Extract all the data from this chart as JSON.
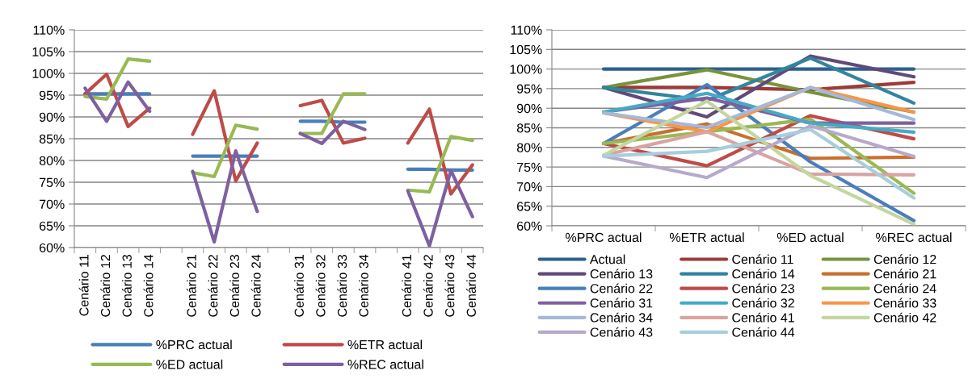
{
  "chart_data": [
    {
      "type": "line",
      "categories": [
        "Cenário 11",
        "Cenário 12",
        "Cenário 13",
        "Cenário 14",
        null,
        "Cenário 21",
        "Cenário 22",
        "Cenário 23",
        "Cenário 24",
        null,
        "Cenário 31",
        "Cenário 32",
        "Cenário 33",
        "Cenário 34",
        null,
        "Cenário 41",
        "Cenário 42",
        "Cenário 43",
        "Cenário 44"
      ],
      "ylim": [
        60,
        110
      ],
      "yticks": [
        {
          "value": 60,
          "label": "60%"
        },
        {
          "value": 65,
          "label": "65%"
        },
        {
          "value": 70,
          "label": "70%"
        },
        {
          "value": 75,
          "label": "75%"
        },
        {
          "value": 80,
          "label": "80%"
        },
        {
          "value": 85,
          "label": "85%"
        },
        {
          "value": 90,
          "label": "90%"
        },
        {
          "value": 95,
          "label": "95%"
        },
        {
          "value": 100,
          "label": "100%"
        },
        {
          "value": 105,
          "label": "105%"
        },
        {
          "value": 110,
          "label": "110%"
        }
      ],
      "grid": "y",
      "legend": "bottom",
      "marker": "none",
      "line_style": "solid",
      "series": [
        {
          "name": "%PRC actual",
          "color": "#4a7ebb",
          "values": [
            95.3,
            95.3,
            95.3,
            95.3,
            null,
            81,
            81,
            81,
            81,
            null,
            89,
            89,
            88.8,
            88.8,
            null,
            78,
            78,
            77.8,
            77.8
          ]
        },
        {
          "name": "%ETR actual",
          "color": "#be4b48",
          "values": [
            95.3,
            99.8,
            87.8,
            92,
            null,
            86,
            96,
            75.3,
            84,
            null,
            92.6,
            93.8,
            84,
            85.1,
            null,
            84,
            91.8,
            72.3,
            79
          ]
        },
        {
          "name": "%ED actual",
          "color": "#98b954",
          "values": [
            94.7,
            94.1,
            103.3,
            102.8,
            null,
            77.2,
            76.3,
            88.1,
            87.2,
            null,
            86.2,
            86.2,
            95.3,
            95.3,
            null,
            73.2,
            72.8,
            85.5,
            84.6
          ]
        },
        {
          "name": "%REC actual",
          "color": "#7d60a0",
          "values": [
            96.6,
            89,
            98,
            91.3,
            null,
            77.5,
            61.3,
            82.2,
            68.3,
            null,
            86.2,
            83.9,
            89,
            87.1,
            null,
            73,
            60.4,
            77.7,
            67.1
          ]
        }
      ]
    },
    {
      "type": "line",
      "categories": [
        "%PRC actual",
        "%ETR actual",
        "%ED actual",
        "%REC actual"
      ],
      "ylim": [
        60,
        110
      ],
      "yticks": [
        {
          "value": 60,
          "label": "60%"
        },
        {
          "value": 65,
          "label": "65%"
        },
        {
          "value": 70,
          "label": "70%"
        },
        {
          "value": 75,
          "label": "75%"
        },
        {
          "value": 80,
          "label": "80%"
        },
        {
          "value": 85,
          "label": "85%"
        },
        {
          "value": 90,
          "label": "90%"
        },
        {
          "value": 95,
          "label": "95%"
        },
        {
          "value": 100,
          "label": "100%"
        },
        {
          "value": 105,
          "label": "105%"
        },
        {
          "value": 110,
          "label": "110%"
        }
      ],
      "grid": "y",
      "legend": "bottom",
      "marker": "none",
      "line_style": "solid",
      "series": [
        {
          "name": "Actual",
          "color": "#2e5f8f",
          "values": [
            100,
            100,
            100,
            100
          ]
        },
        {
          "name": "Cenário 11",
          "color": "#9b3b38",
          "values": [
            95.3,
            95.3,
            94.7,
            96.6
          ]
        },
        {
          "name": "Cenário 12",
          "color": "#77933c",
          "values": [
            95.3,
            99.8,
            94.1,
            89
          ]
        },
        {
          "name": "Cenário 13",
          "color": "#604a7b",
          "values": [
            95.3,
            87.8,
            103.3,
            98
          ]
        },
        {
          "name": "Cenário 14",
          "color": "#31859c",
          "values": [
            95.3,
            92,
            102.8,
            91.3
          ]
        },
        {
          "name": "Cenário 21",
          "color": "#c8702e",
          "values": [
            81,
            86,
            77.2,
            77.5
          ]
        },
        {
          "name": "Cenário 22",
          "color": "#4a7ebb",
          "values": [
            81,
            96,
            76.3,
            61.3
          ]
        },
        {
          "name": "Cenário 23",
          "color": "#be4b48",
          "values": [
            81,
            75.3,
            88.1,
            82.2
          ]
        },
        {
          "name": "Cenário 24",
          "color": "#98b954",
          "values": [
            81,
            84,
            87.2,
            68.3
          ]
        },
        {
          "name": "Cenário 31",
          "color": "#7d60a0",
          "values": [
            89,
            92.6,
            86.2,
            86.2
          ]
        },
        {
          "name": "Cenário 32",
          "color": "#46aac5",
          "values": [
            89,
            93.8,
            86.2,
            83.9
          ]
        },
        {
          "name": "Cenário 33",
          "color": "#f79646",
          "values": [
            88.8,
            84,
            95.3,
            89
          ]
        },
        {
          "name": "Cenário 34",
          "color": "#a5b8d9",
          "values": [
            88.8,
            85.1,
            95.3,
            87.1
          ]
        },
        {
          "name": "Cenário 41",
          "color": "#d9a3a2",
          "values": [
            78,
            84,
            73.2,
            73
          ]
        },
        {
          "name": "Cenário 42",
          "color": "#c4d6a0",
          "values": [
            78,
            91.8,
            72.8,
            60.4
          ]
        },
        {
          "name": "Cenário 43",
          "color": "#b8a9cb",
          "values": [
            77.8,
            72.3,
            85.5,
            77.7
          ]
        },
        {
          "name": "Cenário 44",
          "color": "#a6cfdc",
          "values": [
            77.8,
            79,
            84.6,
            67.1
          ]
        }
      ]
    }
  ]
}
